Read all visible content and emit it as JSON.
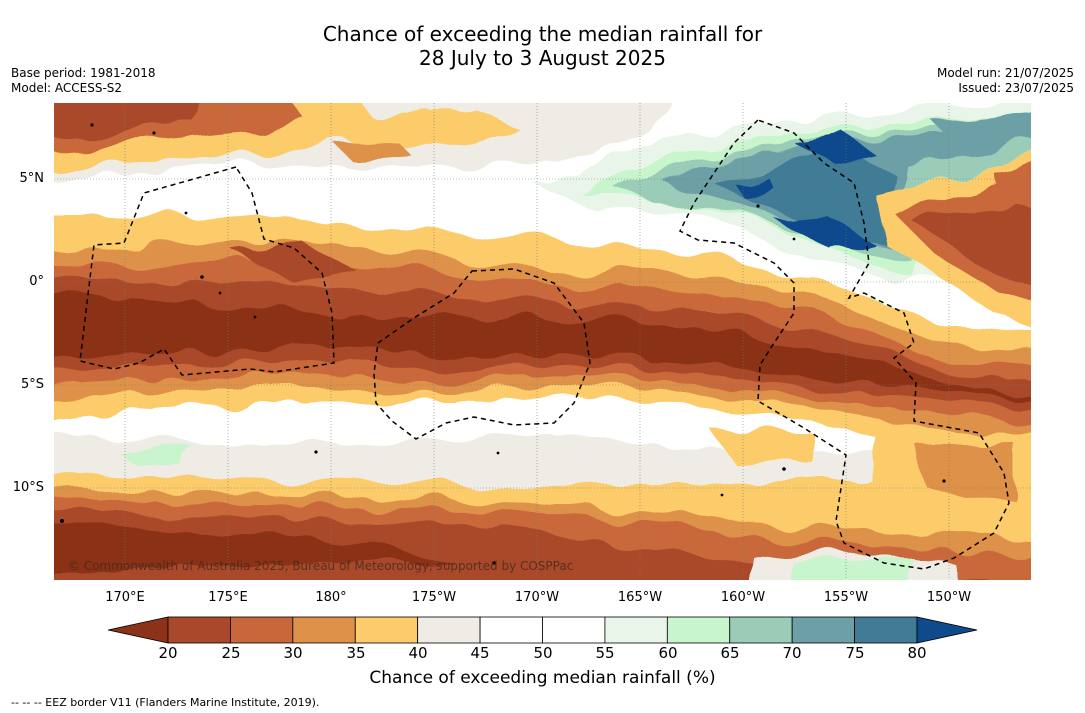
{
  "title_line1": "Chance of exceeding the median rainfall for",
  "title_line2": "28 July to 3 August 2025",
  "base_period": "Base period: 1981-2018",
  "model": "Model: ACCESS-S2",
  "model_run": "Model run: 21/07/2025",
  "issued": "Issued: 23/07/2025",
  "lat_labels": [
    "5°N",
    "0°",
    "5°S",
    "10°S"
  ],
  "lon_labels": [
    "170°E",
    "175°E",
    "180°",
    "175°W",
    "170°W",
    "165°W",
    "160°W",
    "155°W",
    "150°W"
  ],
  "copyright": "© Commonwealth of Australia 2025, Bureau of Meteorology, supported by COSPPac",
  "colorbar": {
    "label": "Chance of exceeding median rainfall (%)",
    "ticks": [
      "20",
      "25",
      "30",
      "35",
      "40",
      "45",
      "50",
      "55",
      "60",
      "65",
      "70",
      "75",
      "80"
    ],
    "colors": [
      "#8b3219",
      "#a9482a",
      "#c8683a",
      "#de9148",
      "#fccb6b",
      "#efece6",
      "#ffffff",
      "#ffffff",
      "#eaf5ea",
      "#c8f5cc",
      "#9bccb7",
      "#6d9fa6",
      "#417b96",
      "#0f4a8c"
    ]
  },
  "footnote": "--  --  -- EEZ border V11 (Flanders Marine Institute, 2019)."
}
